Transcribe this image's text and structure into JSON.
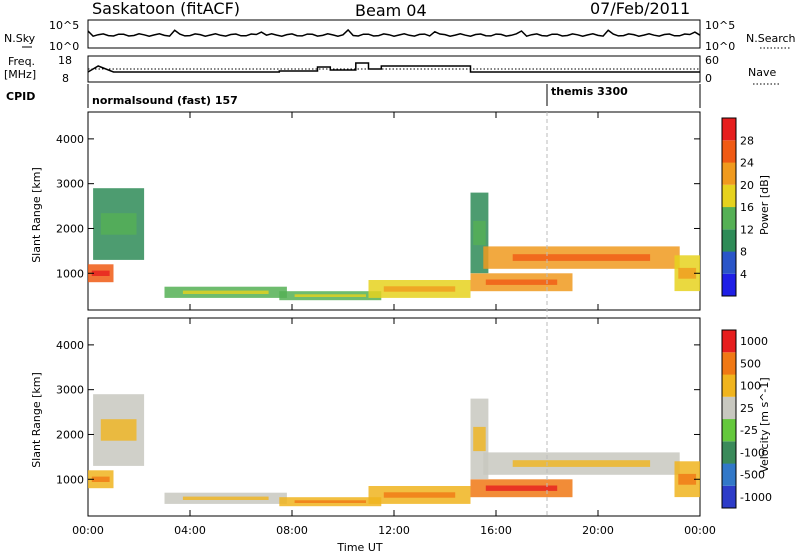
{
  "header": {
    "station": "Saskatoon (fitACF)",
    "beam": "Beam 04",
    "date": "07/Feb/2011"
  },
  "strip_labels": {
    "nsky": "N.Sky",
    "nsearch": "N.Search",
    "freq_line1": "Freq.",
    "freq_line2": "[MHz]",
    "nave": "Nave",
    "cpid": "CPID",
    "nsky_ticks": [
      "10^5",
      "10^0"
    ],
    "nsearch_ticks": [
      "10^5",
      "10^0"
    ],
    "freq_ticks": [
      "18",
      "8"
    ],
    "nave_ticks": [
      "60",
      "0"
    ]
  },
  "cpid_segments": [
    {
      "label": "normalsound (fast) 157",
      "start_hour": 0
    },
    {
      "label": "themis 3300",
      "start_hour": 18
    }
  ],
  "axes": {
    "xlabel": "Time UT",
    "xticks": [
      "00:00",
      "04:00",
      "08:00",
      "12:00",
      "16:00",
      "20:00",
      "00:00"
    ],
    "ylabel": "Slant Range [km]",
    "yticks": [
      "1000",
      "2000",
      "3000",
      "4000"
    ]
  },
  "power_scale": {
    "label": "Power [dB]",
    "ticks": [
      "4",
      "8",
      "12",
      "16",
      "20",
      "24",
      "28"
    ],
    "colors": [
      "#1f1fe6",
      "#2a55c8",
      "#2e8b57",
      "#55b055",
      "#e6d21e",
      "#f09a1e",
      "#f05a14",
      "#e61e1e"
    ]
  },
  "velocity_scale": {
    "label": "Velocity [m s^-1]",
    "ticks": [
      "1000",
      "500",
      "100",
      "25",
      "-25",
      "-100",
      "-500",
      "-1000"
    ],
    "colors": [
      "#2d3cc8",
      "#3278c8",
      "#3a8a5a",
      "#64c83c",
      "#c8c8c0",
      "#f0b41e",
      "#f07814",
      "#e61e1e"
    ]
  },
  "chart_data": {
    "type": "heatmap",
    "x_range_hours": [
      0,
      24
    ],
    "y_range_km": [
      180,
      4600
    ],
    "series": [
      {
        "name": "Power",
        "values_dB": [
          4,
          8,
          12,
          16,
          20,
          24,
          28
        ]
      },
      {
        "name": "Velocity",
        "values_ms": [
          -1000,
          -500,
          -100,
          -25,
          25,
          100,
          500,
          1000
        ]
      }
    ],
    "echo_regions": [
      {
        "t_start": 0.0,
        "t_end": 1.0,
        "r_start": 800,
        "r_end": 1200,
        "power_level": 6,
        "vel_level": 5
      },
      {
        "t_start": 0.2,
        "t_end": 2.2,
        "r_start": 1300,
        "r_end": 2900,
        "power_level": 2,
        "vel_level": 4
      },
      {
        "t_start": 3.0,
        "t_end": 7.8,
        "r_start": 450,
        "r_end": 700,
        "power_level": 3,
        "vel_level": 4
      },
      {
        "t_start": 7.5,
        "t_end": 11.5,
        "r_start": 400,
        "r_end": 600,
        "power_level": 3,
        "vel_level": 5
      },
      {
        "t_start": 11.0,
        "t_end": 15.0,
        "r_start": 450,
        "r_end": 850,
        "power_level": 4,
        "vel_level": 5
      },
      {
        "t_start": 15.0,
        "t_end": 19.0,
        "r_start": 600,
        "r_end": 1000,
        "power_level": 5,
        "vel_level": 6
      },
      {
        "t_start": 15.0,
        "t_end": 15.7,
        "r_start": 1000,
        "r_end": 2800,
        "power_level": 2,
        "vel_level": 4
      },
      {
        "t_start": 15.5,
        "t_end": 23.2,
        "r_start": 1100,
        "r_end": 1600,
        "power_level": 5,
        "vel_level": 4
      },
      {
        "t_start": 23.0,
        "t_end": 24.0,
        "r_start": 600,
        "r_end": 1400,
        "power_level": 4,
        "vel_level": 5
      }
    ]
  }
}
